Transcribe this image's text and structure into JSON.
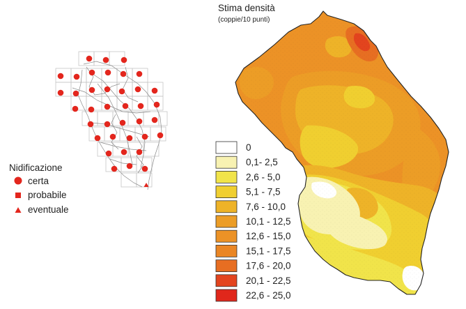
{
  "density_panel": {
    "title": "Stima densità",
    "subtitle": "(coppie/10 punti)"
  },
  "nesting_legend": {
    "title": "Nidificazione",
    "items": [
      {
        "label": "certa",
        "symbol": "circle-icon"
      },
      {
        "label": "probabile",
        "symbol": "square-icon"
      },
      {
        "label": "eventuale",
        "symbol": "triangle-icon"
      }
    ],
    "color": "#e3261d"
  },
  "density_legend": [
    {
      "label": "0",
      "color": "#ffffff"
    },
    {
      "label": "0,1- 2,5",
      "color": "#f8f2b2"
    },
    {
      "label": "2,6 - 5,0",
      "color": "#f1e44a"
    },
    {
      "label": "5,1 - 7,5",
      "color": "#f0cf30"
    },
    {
      "label": "7,6 - 10,0",
      "color": "#eeb328"
    },
    {
      "label": "10,1 - 12,5",
      "color": "#ec9d26"
    },
    {
      "label": "12,6 - 15,0",
      "color": "#ec9226"
    },
    {
      "label": "15,1 - 17,5",
      "color": "#ea8624"
    },
    {
      "label": "17,6 - 20,0",
      "color": "#e76e22"
    },
    {
      "label": "20,1 - 22,5",
      "color": "#e3441e"
    },
    {
      "label": "22,6 - 25,0",
      "color": "#e0271b"
    }
  ]
}
